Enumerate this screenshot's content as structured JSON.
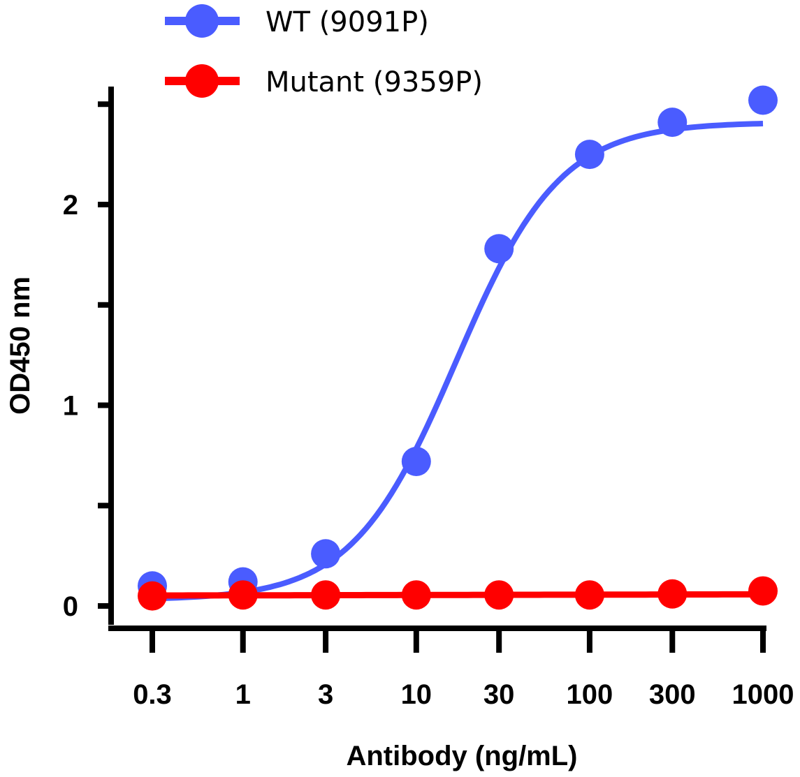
{
  "chart_data": {
    "type": "line",
    "xscale": "log",
    "xlabel": "Antibody (ng/mL)",
    "ylabel": "OD450 nm",
    "ylim": [
      0,
      2.5
    ],
    "x_ticks": [
      0.3,
      1,
      3,
      10,
      30,
      100,
      300,
      1000
    ],
    "x_tick_labels": [
      "0.3",
      "1",
      "3",
      "10",
      "30",
      "100",
      "300",
      "1000"
    ],
    "y_ticks": [
      0,
      0.5,
      1,
      1.5,
      2,
      2.5
    ],
    "y_tick_labels": [
      "0",
      "",
      "1",
      "",
      "2",
      ""
    ],
    "legend_position": "top",
    "grid": false,
    "series": [
      {
        "name": "WT (9091P)",
        "color": "#4a5cff",
        "marker_color": "#4a5cff",
        "x": [
          0.3,
          1,
          3,
          10,
          30,
          100,
          300,
          1000
        ],
        "y": [
          0.1,
          0.12,
          0.26,
          0.72,
          1.78,
          2.25,
          2.41,
          2.52
        ]
      },
      {
        "name": "Mutant (9359P)",
        "color": "#ff0000",
        "marker_color": "#ff0000",
        "x": [
          0.3,
          1,
          3,
          10,
          30,
          100,
          300,
          1000
        ],
        "y": [
          0.05,
          0.055,
          0.055,
          0.055,
          0.055,
          0.055,
          0.06,
          0.075
        ]
      }
    ]
  }
}
